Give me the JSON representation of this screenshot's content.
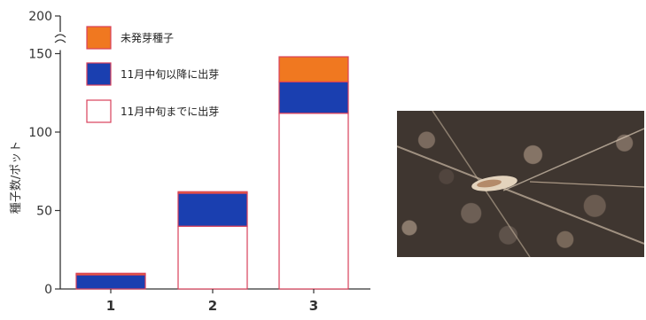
{
  "chart_data": {
    "type": "bar",
    "stacked": true,
    "categories": [
      "1",
      "2",
      "3"
    ],
    "ylabel": "種子数/ポット",
    "ylim": [
      0,
      200
    ],
    "axis_break": [
      150,
      200
    ],
    "yticks": [
      0,
      50,
      100,
      150,
      200
    ],
    "series": [
      {
        "name": "11月中旬までに出芽",
        "color": "#ffffff",
        "values": [
          0,
          40,
          112
        ]
      },
      {
        "name": "11月中旬以降に出芽",
        "color": "#1a3fb0",
        "values": [
          9,
          21,
          20
        ]
      },
      {
        "name": "未発芽種子",
        "color": "#f07820",
        "values": [
          1,
          1,
          16
        ]
      }
    ],
    "legend_position": "top-left"
  },
  "photo": {
    "description_icon": "seed-on-soil-photo"
  }
}
